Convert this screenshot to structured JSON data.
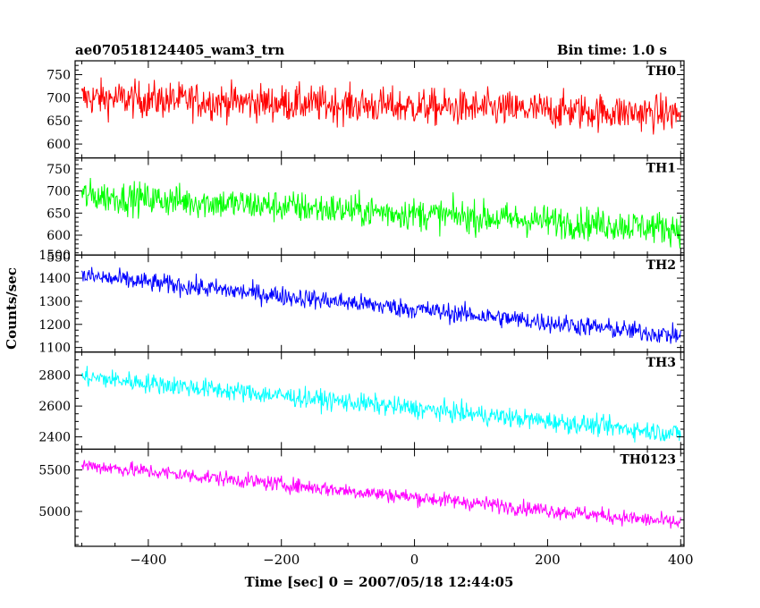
{
  "chart_data": {
    "type": "line",
    "title": "ae070518124405_wam3_trn",
    "bin_time": "Bin time: 1.0 s",
    "ylabel": "Counts/sec",
    "xlabel": "Time [sec] 0 = 2007/05/18 12:44:05",
    "xlim": [
      -510,
      405
    ],
    "x_step": 1,
    "x_ticks": [
      -400,
      -200,
      0,
      200,
      400
    ],
    "x_tick_labels": [
      "−400",
      "−200",
      "0",
      "200",
      "400"
    ],
    "panels": [
      {
        "name": "TH0",
        "color": "#ff0000",
        "ylim": [
          570,
          780
        ],
        "y_ticks": [
          600,
          650,
          700,
          750
        ],
        "y_tick_labels": [
          "600",
          "650",
          "700",
          "750"
        ],
        "x": [
          -500,
          400
        ],
        "trend": [
          700,
          665
        ],
        "noise": 28
      },
      {
        "name": "TH1",
        "color": "#00ff00",
        "ylim": [
          555,
          775
        ],
        "y_ticks": [
          550,
          600,
          650,
          700,
          750
        ],
        "y_tick_labels": [
          "550",
          "600",
          "650",
          "700",
          "750"
        ],
        "x": [
          -500,
          400
        ],
        "trend": [
          690,
          615
        ],
        "noise": 26
      },
      {
        "name": "TH2",
        "color": "#0000ff",
        "ylim": [
          1080,
          1500
        ],
        "y_ticks": [
          1100,
          1200,
          1300,
          1400,
          1500
        ],
        "y_tick_labels": [
          "1100",
          "1200",
          "1300",
          "1400",
          "1500"
        ],
        "x": [
          -500,
          400
        ],
        "trend": [
          1410,
          1150
        ],
        "noise": 30
      },
      {
        "name": "TH3",
        "color": "#00ffff",
        "ylim": [
          2320,
          2950
        ],
        "y_ticks": [
          2400,
          2600,
          2800
        ],
        "y_tick_labels": [
          "2400",
          "2600",
          "2800"
        ],
        "x": [
          -500,
          400
        ],
        "trend": [
          2790,
          2420
        ],
        "noise": 45
      },
      {
        "name": "TH0123",
        "color": "#ff00ff",
        "ylim": [
          4580,
          5750
        ],
        "y_ticks": [
          5000,
          5500
        ],
        "y_tick_labels": [
          "5000",
          "5500"
        ],
        "x": [
          -500,
          400
        ],
        "trend": [
          5560,
          4860
        ],
        "noise": 65
      }
    ]
  }
}
